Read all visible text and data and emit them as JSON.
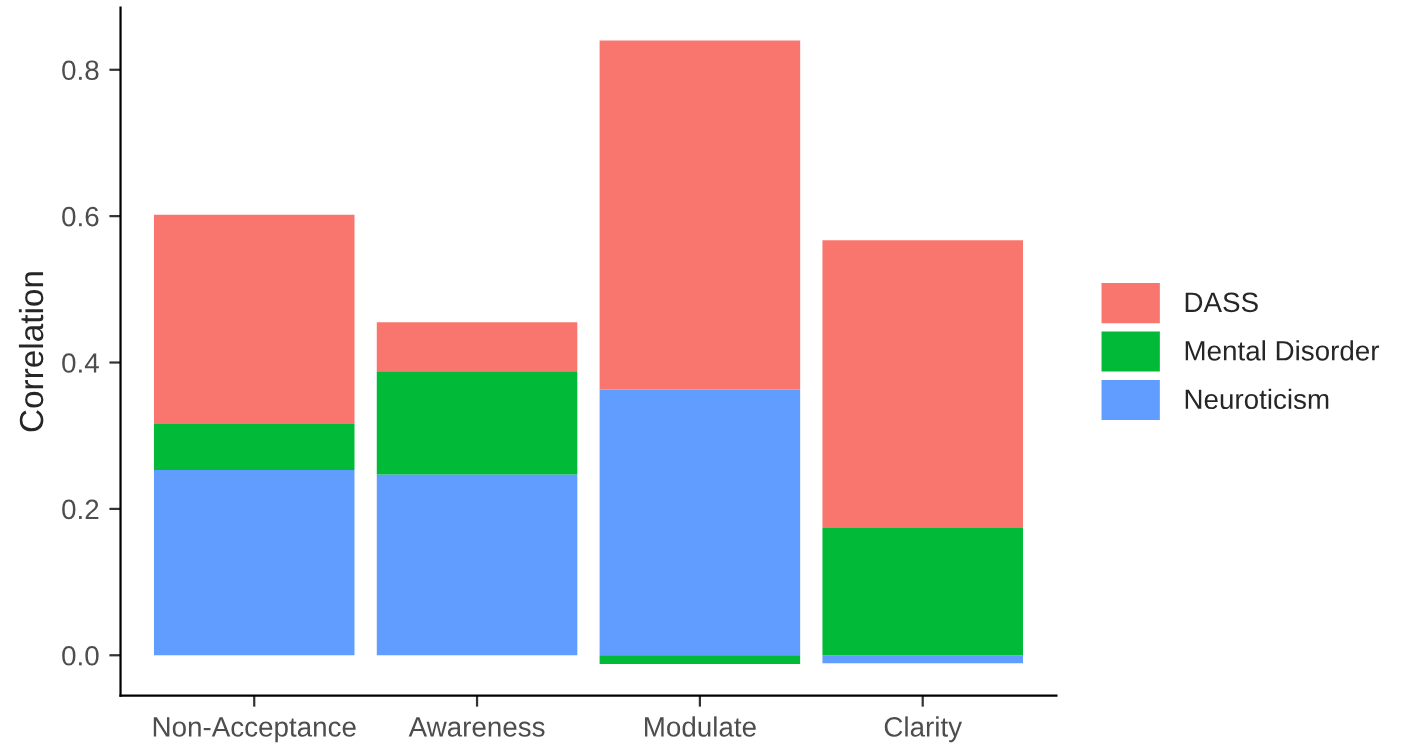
{
  "chart_data": {
    "type": "bar",
    "stacked": true,
    "ylabel": "Correlation",
    "categories": [
      "Non-Acceptance",
      "Awareness",
      "Modulate",
      "Clarity"
    ],
    "series": [
      {
        "name": "Neuroticism",
        "color": "#619cff",
        "values": [
          0.253,
          0.247,
          0.363,
          -0.011
        ]
      },
      {
        "name": "Mental Disorder",
        "color": "#00ba38",
        "values": [
          0.063,
          0.141,
          -0.012,
          0.174
        ]
      },
      {
        "name": "DASS",
        "color": "#f8766d",
        "values": [
          0.286,
          0.067,
          0.477,
          0.393
        ]
      }
    ],
    "ylim": [
      -0.055,
      0.885
    ],
    "yticks": [
      {
        "value": 0,
        "label": "0.0"
      },
      {
        "value": 0.2,
        "label": "0.2"
      },
      {
        "value": 0.4,
        "label": "0.4"
      },
      {
        "value": 0.6,
        "label": "0.6"
      },
      {
        "value": 0.8,
        "label": "0.8"
      }
    ],
    "grid": false,
    "legend": "right"
  }
}
